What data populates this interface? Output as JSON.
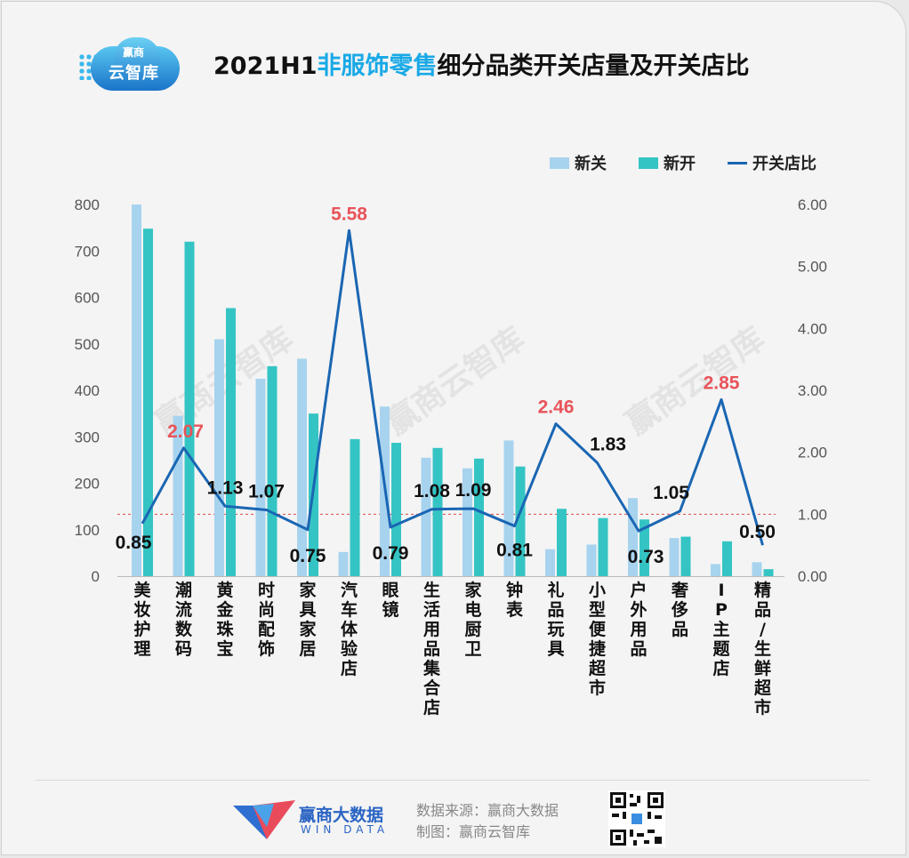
{
  "header": {
    "logo_small": "赢商",
    "logo_big": "云智库",
    "title_pre": "2021H1",
    "title_highlight": "非服饰零售",
    "title_post": "细分品类开关店量及开关店比"
  },
  "watermark": "赢商云智库",
  "footer": {
    "brand": "赢商大数据",
    "brand_sub": "WIN DATA",
    "source": "数据来源：赢商大数据",
    "made_by": "制图：赢商云智库"
  },
  "colors": {
    "closed": "#a7d3ee",
    "opened": "#35c4c4",
    "ratio_line": "#1a66b3",
    "highlight_label": "#e8545a",
    "reference_line": "#e04848"
  },
  "chart_data": {
    "type": "bar",
    "categories": [
      "美妆护理",
      "潮流数码",
      "黄金珠宝",
      "时尚配饰",
      "家具家居",
      "汽车体验店",
      "眼镜",
      "生活用品集合店",
      "家电厨卫",
      "钟表",
      "礼品玩具",
      "小型便捷超市",
      "户外用品",
      "奢侈品",
      "IP主题店",
      "精品/生鲜超市"
    ],
    "series": [
      {
        "name": "新关",
        "axis": "left",
        "values": [
          800,
          345,
          510,
          425,
          468,
          52,
          365,
          255,
          232,
          292,
          58,
          68,
          168,
          82,
          26,
          30
        ]
      },
      {
        "name": "新开",
        "axis": "left",
        "values": [
          748,
          720,
          577,
          452,
          350,
          295,
          287,
          276,
          253,
          236,
          145,
          125,
          122,
          85,
          75,
          15
        ]
      },
      {
        "name": "开关店比",
        "axis": "right",
        "type": "line",
        "values": [
          0.85,
          2.07,
          1.13,
          1.07,
          0.75,
          5.58,
          0.79,
          1.08,
          1.09,
          0.81,
          2.46,
          1.83,
          0.73,
          1.05,
          2.85,
          0.5
        ],
        "labels": [
          "0.85",
          "2.07",
          "1.13",
          "1.07",
          "0.75",
          "5.58",
          "0.79",
          "1.08",
          "1.09",
          "0.81",
          "2.46",
          "1.83",
          "0.73",
          "1.05",
          "2.85",
          "0.50"
        ],
        "highlighted_labels": [
          "2.07",
          "5.58",
          "2.46",
          "2.85"
        ]
      }
    ],
    "y_left": {
      "ylim": [
        0,
        800
      ],
      "ticks": [
        "0",
        "100",
        "200",
        "300",
        "400",
        "500",
        "600",
        "700",
        "800"
      ]
    },
    "y_right": {
      "ylim": [
        0,
        6
      ],
      "ticks": [
        "0.00",
        "1.00",
        "2.00",
        "3.00",
        "4.00",
        "5.00",
        "6.00"
      ]
    },
    "reference_line": {
      "axis": "right",
      "value": 1.0,
      "style": "dashed"
    },
    "legend": {
      "position": "top-right",
      "entries": [
        "新关",
        "新开",
        "开关店比"
      ]
    },
    "grid": false
  }
}
